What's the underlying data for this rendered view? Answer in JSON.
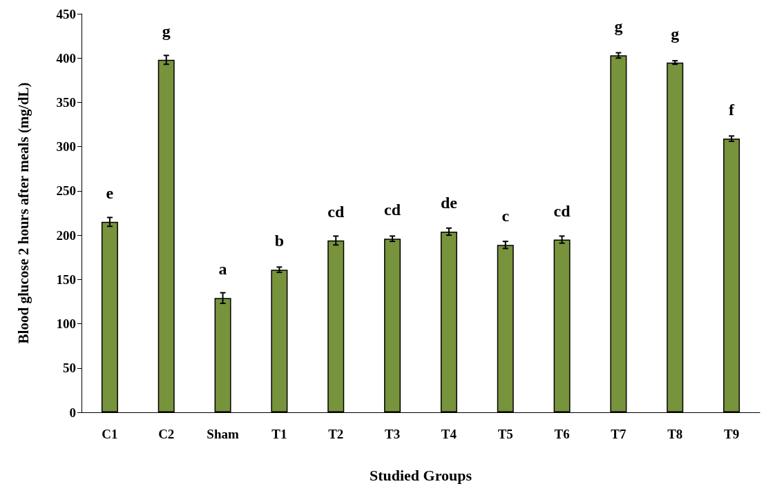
{
  "chart_data": {
    "type": "bar",
    "xlabel": "Studied Groups",
    "ylabel": "Blood glucose 2 hours after meals (mg/dL)",
    "categories": [
      "C1",
      "C2",
      "Sham",
      "T1",
      "T2",
      "T3",
      "T4",
      "T5",
      "T6",
      "T7",
      "T8",
      "T9"
    ],
    "values": [
      215,
      398,
      129,
      161,
      194,
      196,
      204,
      189,
      195,
      403,
      395,
      309
    ],
    "errors": [
      5,
      5,
      6,
      3,
      5,
      3,
      4,
      4,
      4,
      3,
      2,
      3
    ],
    "color": "#77933c",
    "ylim": [
      0,
      450
    ],
    "yticks": [
      0,
      50,
      100,
      150,
      200,
      250,
      300,
      350,
      400,
      450
    ],
    "grid": false,
    "annotations": [
      {
        "text": "e",
        "x": "C1",
        "y": 215
      },
      {
        "text": "g",
        "x": "C2",
        "y": 398
      },
      {
        "text": "a",
        "x": "Sham",
        "y": 129
      },
      {
        "text": "b",
        "x": "T1",
        "y": 161
      },
      {
        "text": "cd",
        "x": "T2",
        "y": 194
      },
      {
        "text": "cd",
        "x": "T3",
        "y": 196
      },
      {
        "text": "de",
        "x": "T4",
        "y": 204
      },
      {
        "text": "c",
        "x": "T5",
        "y": 189
      },
      {
        "text": "cd",
        "x": "T6",
        "y": 195
      },
      {
        "text": "g",
        "x": "T7",
        "y": 403
      },
      {
        "text": "g",
        "x": "T8",
        "y": 395
      },
      {
        "text": "f",
        "x": "T9",
        "y": 309
      }
    ]
  }
}
